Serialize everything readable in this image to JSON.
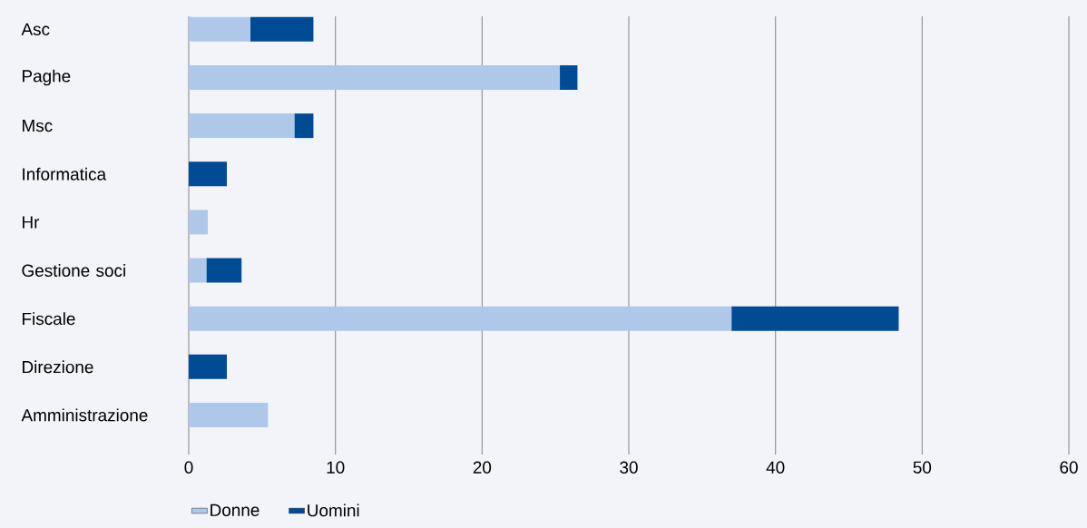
{
  "chart_data": {
    "type": "bar",
    "orientation": "horizontal",
    "stacked": true,
    "categories": [
      "Asc",
      "Paghe",
      "Msc",
      "Informatica",
      "Hr",
      "Gestione soci",
      "Fiscale",
      "Direzione",
      "Amministrazione"
    ],
    "series": [
      {
        "name": "Donne",
        "color": "#afc8e9",
        "values": [
          4.2,
          25.3,
          7.2,
          0,
          1.3,
          1.2,
          37.0,
          0,
          5.4
        ]
      },
      {
        "name": "Uomini",
        "color": "#004b93",
        "values": [
          4.3,
          1.2,
          1.3,
          2.6,
          0,
          2.4,
          11.4,
          2.6,
          0
        ]
      }
    ],
    "xlim": [
      0,
      60
    ],
    "xticks": [
      0,
      10,
      20,
      30,
      40,
      50,
      60
    ],
    "grid": "x",
    "legend": "bottom left"
  }
}
